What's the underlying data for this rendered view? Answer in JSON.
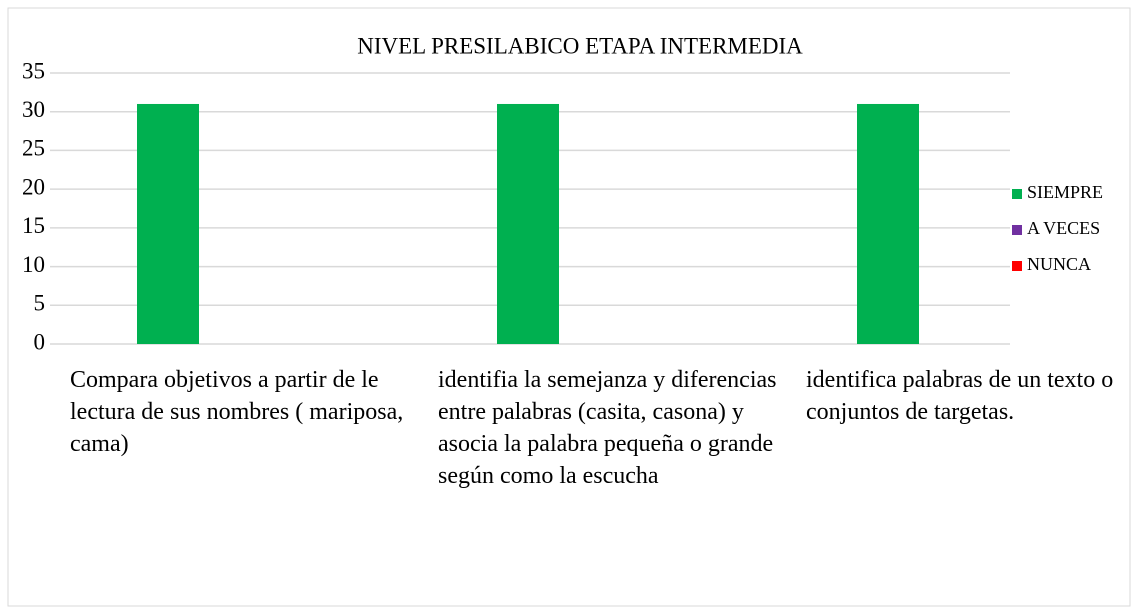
{
  "chart_data": {
    "type": "bar",
    "title": "NIVEL PRESILABICO ETAPA INTERMEDIA",
    "categories": [
      "Compara objetivos a partir de le lectura de sus nombres ( mariposa, cama)",
      "identifia la semejanza y diferencias entre palabras (casita, casona) y asocia la palabra pequeña o grande según como la escucha",
      "identifica palabras de un texto o conjuntos de targetas."
    ],
    "series": [
      {
        "name": "SIEMPRE",
        "color": "#00b050",
        "values": [
          31,
          31,
          31
        ]
      },
      {
        "name": "A VECES",
        "color": "#7030a0",
        "values": [
          0,
          0,
          0
        ]
      },
      {
        "name": "NUNCA",
        "color": "#ff0000",
        "values": [
          0,
          0,
          0
        ]
      }
    ],
    "ylim": [
      0,
      35
    ],
    "yticks": [
      0,
      5,
      10,
      15,
      20,
      25,
      30,
      35
    ],
    "grid": true,
    "legend": "right"
  }
}
